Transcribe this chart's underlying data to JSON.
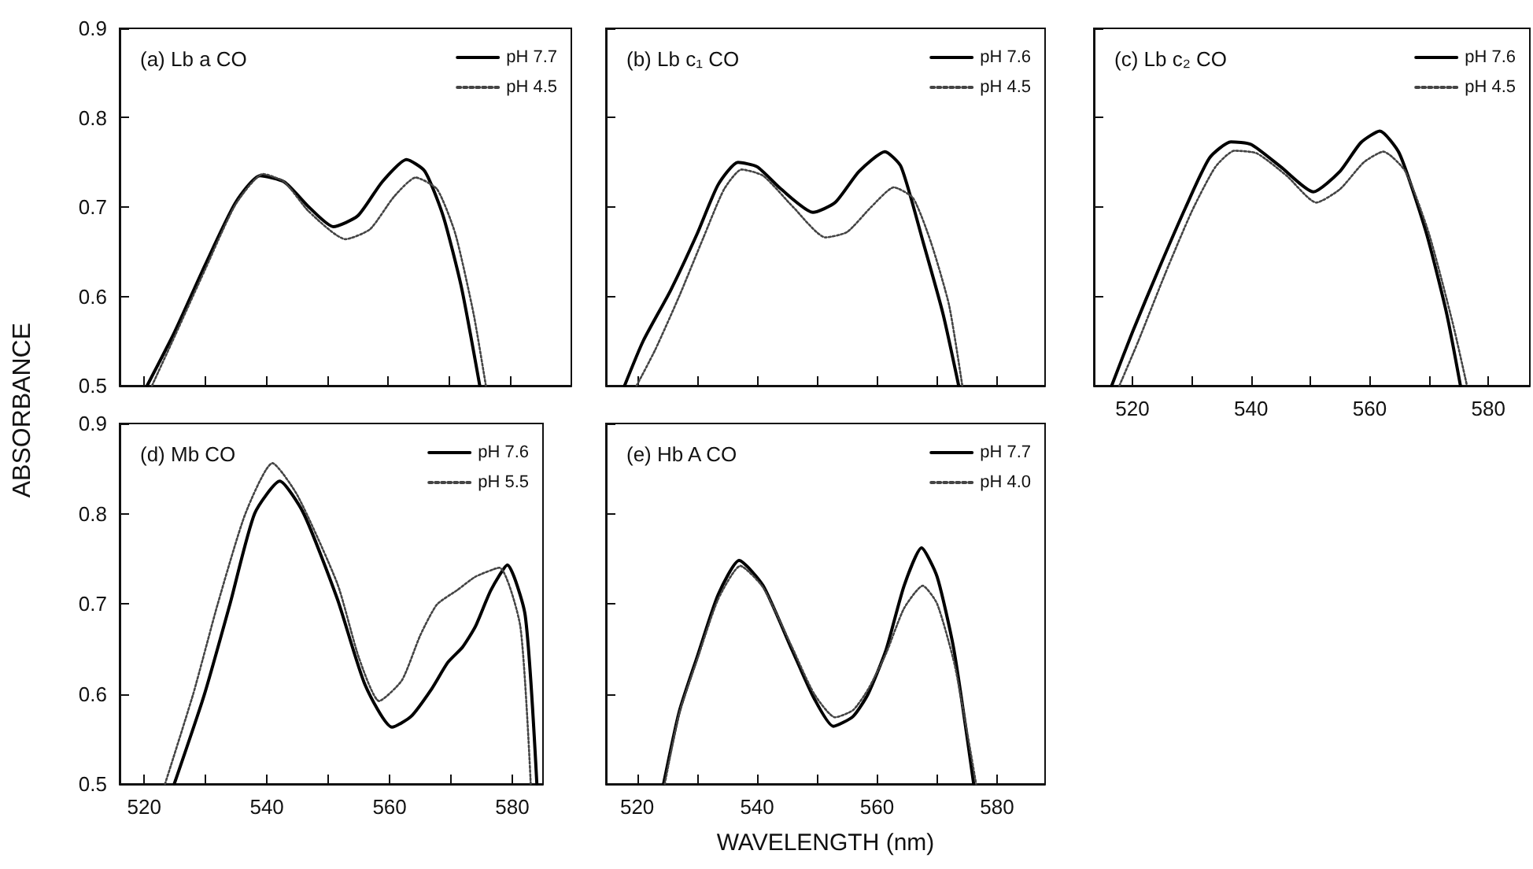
{
  "chart_data": [
    {
      "type": "line",
      "title": "(a) Lb a CO",
      "legend": "top right",
      "marker": "none",
      "tick_labels": "y",
      "xlim": [
        516,
        590
      ],
      "xticks": [
        520,
        {
          "value": 530,
          "label": null
        },
        540,
        {
          "value": 550,
          "label": null
        },
        560,
        {
          "value": 570,
          "label": null
        },
        580
      ],
      "ylim": [
        0.5,
        0.9
      ],
      "yticks": [
        0.5,
        0.6,
        0.7,
        0.8,
        0.9
      ],
      "series": [
        {
          "name": "pH 7.7",
          "color": "#000000",
          "line_style": "solid",
          "x": [
            520.5,
            525,
            530,
            535,
            539,
            543,
            547,
            551,
            555,
            559,
            563,
            566,
            569,
            572,
            575
          ],
          "values": [
            0.5,
            0.56,
            0.635,
            0.705,
            0.735,
            0.728,
            0.7,
            0.678,
            0.69,
            0.728,
            0.753,
            0.74,
            0.69,
            0.61,
            0.5
          ]
        },
        {
          "name": "pH 4.5",
          "color": "#444444",
          "line_style": "dotted",
          "x": [
            521.3,
            525,
            530,
            535,
            539.5,
            543,
            547,
            553,
            557,
            561,
            564.5,
            568,
            571,
            574,
            576
          ],
          "values": [
            0.5,
            0.555,
            0.63,
            0.703,
            0.737,
            0.728,
            0.695,
            0.664,
            0.675,
            0.712,
            0.733,
            0.72,
            0.67,
            0.58,
            0.5
          ]
        }
      ]
    },
    {
      "type": "line",
      "title": "(b) Lb c₁ CO",
      "legend": "top right",
      "marker": "none",
      "tick_labels": false,
      "xlim": [
        514.8,
        588
      ],
      "xticks": [
        520,
        {
          "value": 530,
          "label": null
        },
        540,
        {
          "value": 550,
          "label": null
        },
        560,
        {
          "value": 570,
          "label": null
        },
        580
      ],
      "ylim": [
        0.5,
        0.9
      ],
      "yticks": [
        0.5,
        0.6,
        0.7,
        0.8,
        0.9
      ],
      "series": [
        {
          "name": "pH 7.6",
          "color": "#000000",
          "line_style": "solid",
          "x": [
            517.9,
            521,
            525.6,
            530,
            533.5,
            536.8,
            540,
            544,
            549.3,
            553,
            557,
            561.3,
            564,
            567.7,
            571,
            573.6
          ],
          "values": [
            0.5,
            0.55,
            0.607,
            0.67,
            0.725,
            0.75,
            0.745,
            0.72,
            0.694,
            0.705,
            0.74,
            0.762,
            0.745,
            0.66,
            0.58,
            0.5
          ]
        },
        {
          "name": "pH 4.5",
          "color": "#444444",
          "line_style": "dotted",
          "x": [
            519.9,
            523,
            527,
            531,
            534.5,
            537.4,
            541,
            546,
            551.4,
            555,
            559,
            562.8,
            566,
            569,
            572,
            574.2
          ],
          "values": [
            0.5,
            0.54,
            0.6,
            0.665,
            0.72,
            0.742,
            0.735,
            0.7,
            0.666,
            0.672,
            0.7,
            0.722,
            0.71,
            0.66,
            0.59,
            0.5
          ]
        }
      ]
    },
    {
      "type": "line",
      "title": "(c) Lb c₂ CO",
      "legend": "top right",
      "marker": "none",
      "tick_labels": "x",
      "xlim": [
        513.5,
        587
      ],
      "xticks": [
        520,
        {
          "value": 530,
          "label": null
        },
        540,
        {
          "value": 550,
          "label": null
        },
        560,
        {
          "value": 570,
          "label": null
        },
        580
      ],
      "ylim": [
        0.5,
        0.9
      ],
      "yticks": [
        0.5,
        0.6,
        0.7,
        0.8,
        0.9
      ],
      "series": [
        {
          "name": "pH 7.6",
          "color": "#000000",
          "line_style": "solid",
          "x": [
            516.5,
            520,
            524.4,
            529,
            533,
            536.6,
            540,
            545,
            550.5,
            555,
            558.5,
            561.7,
            565,
            569.5,
            573,
            575.3
          ],
          "values": [
            0.5,
            0.56,
            0.63,
            0.7,
            0.755,
            0.773,
            0.77,
            0.745,
            0.717,
            0.74,
            0.772,
            0.785,
            0.76,
            0.672,
            0.58,
            0.5
          ]
        },
        {
          "name": "pH 4.5",
          "color": "#444444",
          "line_style": "dotted",
          "x": [
            517.8,
            521,
            525.5,
            530,
            534,
            537.2,
            541,
            546,
            551,
            555,
            559,
            562.3,
            566,
            570,
            574,
            576.4
          ],
          "values": [
            0.5,
            0.55,
            0.625,
            0.695,
            0.745,
            0.763,
            0.76,
            0.735,
            0.705,
            0.72,
            0.75,
            0.762,
            0.74,
            0.67,
            0.57,
            0.5
          ]
        }
      ]
    },
    {
      "type": "line",
      "title": "(d) Mb CO",
      "ylabel": "ABSORBANCE",
      "legend": "top right",
      "marker": "none",
      "xlim": [
        516,
        585
      ],
      "xticks": [
        520,
        {
          "value": 530,
          "label": null
        },
        540,
        {
          "value": 550,
          "label": null
        },
        560,
        {
          "value": 570,
          "label": null
        },
        580
      ],
      "ylim": [
        0.5,
        0.9
      ],
      "yticks": [
        0.5,
        0.6,
        0.7,
        0.8,
        0.9
      ],
      "series": [
        {
          "name": "pH 7.6",
          "color": "#000000",
          "line_style": "solid",
          "x": [
            524.9,
            529.8,
            534,
            538,
            542.1,
            546,
            551.5,
            556,
            560.4,
            563.5,
            566.8,
            569.5,
            571.9,
            574,
            576.5,
            579.2,
            582.1,
            584
          ],
          "values": [
            0.5,
            0.599,
            0.7,
            0.8,
            0.836,
            0.8,
            0.705,
            0.61,
            0.563,
            0.575,
            0.605,
            0.635,
            0.652,
            0.675,
            0.715,
            0.743,
            0.687,
            0.5
          ]
        },
        {
          "name": "pH 5.5",
          "color": "#444444",
          "line_style": "dotted",
          "x": [
            523.4,
            528,
            532,
            536.5,
            540.9,
            545,
            551.5,
            555,
            558.3,
            562,
            565,
            567.7,
            571,
            574,
            577.9,
            581.3,
            583
          ],
          "values": [
            0.5,
            0.6,
            0.7,
            0.8,
            0.856,
            0.82,
            0.722,
            0.64,
            0.592,
            0.615,
            0.665,
            0.699,
            0.715,
            0.73,
            0.74,
            0.675,
            0.5
          ]
        }
      ]
    },
    {
      "type": "line",
      "title": "(e) Hb A CO",
      "xlabel": "WAVELENGTH (nm)",
      "legend": "top right",
      "marker": "none",
      "tick_labels": "x",
      "xlim": [
        514.8,
        588
      ],
      "xticks": [
        520,
        {
          "value": 530,
          "label": null
        },
        540,
        {
          "value": 550,
          "label": null
        },
        560,
        {
          "value": 570,
          "label": null
        },
        580
      ],
      "ylim": [
        0.5,
        0.9
      ],
      "yticks": [
        0.5,
        0.6,
        0.7,
        0.8,
        0.9
      ],
      "series": [
        {
          "name": "pH 7.7",
          "color": "#000000",
          "line_style": "solid",
          "x": [
            524.4,
            527,
            530.1,
            533.5,
            537,
            541,
            545.8,
            549.5,
            552.7,
            556,
            558.5,
            561.5,
            564.5,
            567.4,
            570,
            572.8,
            576.1
          ],
          "values": [
            0.5,
            0.58,
            0.643,
            0.71,
            0.748,
            0.72,
            0.649,
            0.595,
            0.564,
            0.575,
            0.6,
            0.649,
            0.72,
            0.762,
            0.73,
            0.649,
            0.5
          ]
        },
        {
          "name": "pH 4.0",
          "color": "#444444",
          "line_style": "dotted",
          "x": [
            524.6,
            527,
            530.1,
            533.5,
            537.2,
            541,
            545.8,
            549.5,
            553,
            556,
            558.5,
            561.5,
            564.5,
            567.6,
            570,
            573,
            576.5
          ],
          "values": [
            0.5,
            0.578,
            0.64,
            0.705,
            0.742,
            0.718,
            0.652,
            0.6,
            0.574,
            0.582,
            0.605,
            0.645,
            0.695,
            0.72,
            0.7,
            0.63,
            0.5
          ]
        }
      ]
    }
  ]
}
